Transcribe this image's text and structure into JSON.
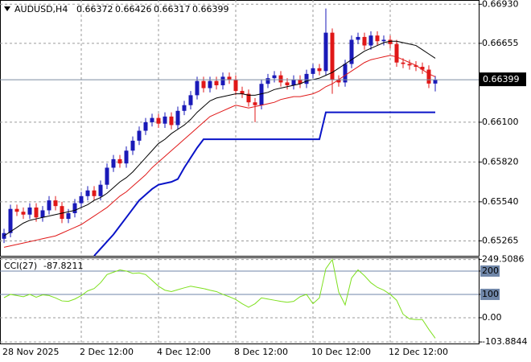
{
  "chart_data": [
    {
      "type": "candlestick",
      "title": "AUDUSD,H4",
      "categories": [
        "28 Nov 2025",
        null,
        null,
        null,
        null,
        null,
        null,
        null,
        null,
        null,
        null,
        null,
        "2 Dec 12:00",
        null,
        null,
        null,
        null,
        null,
        null,
        null,
        null,
        null,
        null,
        null,
        "4 Dec 12:00",
        null,
        null,
        null,
        null,
        null,
        null,
        null,
        null,
        null,
        null,
        null,
        "8 Dec 12:00",
        null,
        null,
        null,
        null,
        null,
        null,
        null,
        null,
        null,
        null,
        null,
        "10 Dec 12:00",
        null,
        null,
        null,
        null,
        null,
        null,
        null,
        null,
        null,
        null,
        null,
        "12 Dec 12:00",
        null,
        null,
        null,
        null,
        null,
        null,
        null
      ],
      "open": [
        0.6528,
        0.6532,
        0.6549,
        0.6547,
        0.6545,
        0.655,
        0.6543,
        0.6548,
        0.6555,
        0.6551,
        0.6542,
        0.6546,
        0.6553,
        0.6558,
        0.6562,
        0.6558,
        0.6566,
        0.6578,
        0.6584,
        0.6581,
        0.659,
        0.6597,
        0.6604,
        0.661,
        0.6613,
        0.6609,
        0.6614,
        0.6608,
        0.6618,
        0.6622,
        0.6629,
        0.6639,
        0.6634,
        0.6639,
        0.6636,
        0.6642,
        0.664,
        0.6632,
        0.663,
        0.6624,
        0.6622,
        0.6637,
        0.6641,
        0.6643,
        0.6638,
        0.6636,
        0.664,
        0.6637,
        0.6644,
        0.6648,
        0.6646,
        0.6673,
        0.664,
        0.6638,
        0.6651,
        0.6668,
        0.667,
        0.6664,
        0.6671,
        0.6667,
        0.6668,
        0.6665,
        0.6652,
        0.6651,
        0.665,
        0.6649,
        0.6647,
        0.66372
      ],
      "high": [
        0.6535,
        0.6552,
        0.6552,
        0.655,
        0.6553,
        0.6553,
        0.6551,
        0.6558,
        0.6558,
        0.6554,
        0.6549,
        0.6556,
        0.6561,
        0.6565,
        0.6565,
        0.6569,
        0.6581,
        0.6587,
        0.6587,
        0.6593,
        0.66,
        0.6607,
        0.6613,
        0.6616,
        0.6616,
        0.6617,
        0.6617,
        0.6621,
        0.6625,
        0.6632,
        0.6642,
        0.6642,
        0.6642,
        0.6642,
        0.6645,
        0.6645,
        0.6643,
        0.6635,
        0.6633,
        0.6627,
        0.664,
        0.6644,
        0.6646,
        0.6646,
        0.6641,
        0.6643,
        0.6643,
        0.6647,
        0.6651,
        0.6651,
        0.669,
        0.6676,
        0.6643,
        0.6654,
        0.6671,
        0.6673,
        0.6673,
        0.6674,
        0.6674,
        0.6671,
        0.6671,
        0.6668,
        0.6655,
        0.6654,
        0.6653,
        0.6652,
        0.665,
        0.66426
      ],
      "low": [
        0.6525,
        0.6529,
        0.6544,
        0.6542,
        0.6542,
        0.654,
        0.654,
        0.6545,
        0.6548,
        0.6539,
        0.6539,
        0.6543,
        0.655,
        0.6555,
        0.6555,
        0.6555,
        0.6563,
        0.6575,
        0.6578,
        0.6578,
        0.6587,
        0.6594,
        0.6601,
        0.6607,
        0.6606,
        0.6606,
        0.6605,
        0.6605,
        0.6615,
        0.6619,
        0.6626,
        0.6631,
        0.6631,
        0.6633,
        0.6633,
        0.6637,
        0.6629,
        0.6627,
        0.6621,
        0.661,
        0.6619,
        0.6634,
        0.6638,
        0.6635,
        0.6633,
        0.6633,
        0.6634,
        0.6634,
        0.6641,
        0.6643,
        0.6643,
        0.663,
        0.6635,
        0.6635,
        0.6648,
        0.6665,
        0.6661,
        0.6661,
        0.6664,
        0.6664,
        0.6662,
        0.6649,
        0.6648,
        0.6647,
        0.6646,
        0.6644,
        0.6634,
        0.66317
      ],
      "close": [
        0.6532,
        0.6549,
        0.6547,
        0.6545,
        0.655,
        0.6543,
        0.6548,
        0.6555,
        0.6551,
        0.6542,
        0.6546,
        0.6553,
        0.6558,
        0.6562,
        0.6558,
        0.6566,
        0.6578,
        0.6584,
        0.6581,
        0.659,
        0.6597,
        0.6604,
        0.661,
        0.6613,
        0.6609,
        0.6614,
        0.6608,
        0.6618,
        0.6622,
        0.6629,
        0.6639,
        0.6634,
        0.6639,
        0.6636,
        0.6642,
        0.664,
        0.6632,
        0.663,
        0.6624,
        0.6622,
        0.6637,
        0.6641,
        0.6643,
        0.6638,
        0.6636,
        0.664,
        0.6637,
        0.6644,
        0.6648,
        0.6646,
        0.6673,
        0.664,
        0.6638,
        0.6651,
        0.6668,
        0.667,
        0.6664,
        0.6671,
        0.6667,
        0.6668,
        0.6665,
        0.6652,
        0.6651,
        0.665,
        0.6649,
        0.6647,
        0.66372,
        0.66399
      ],
      "up_color": "#1a1ab8",
      "down_color": "#e01818",
      "series": [
        {
          "color": "#000000",
          "values": [
            0.653,
            0.6533,
            0.6536,
            0.6539,
            0.6541,
            0.6542,
            0.6543,
            0.6544,
            0.6545,
            0.6546,
            0.6547,
            0.6548,
            0.655,
            0.6552,
            0.6555,
            0.6557,
            0.656,
            0.6564,
            0.6568,
            0.6571,
            0.6575,
            0.658,
            0.6585,
            0.659,
            0.6595,
            0.6598,
            0.6602,
            0.6605,
            0.6608,
            0.6612,
            0.6617,
            0.6621,
            0.6625,
            0.6627,
            0.6628,
            0.6629,
            0.663,
            0.663,
            0.6629,
            0.6629,
            0.663,
            0.6631,
            0.6633,
            0.6634,
            0.6635,
            0.6636,
            0.6637,
            0.6639,
            0.664,
            0.6641,
            0.6643,
            0.6645,
            0.6648,
            0.6651,
            0.6654,
            0.6657,
            0.666,
            0.6662,
            0.6664,
            0.6666,
            0.6667,
            0.6667,
            0.6666,
            0.6665,
            0.6664,
            0.6661,
            0.6658,
            0.6655
          ]
        },
        {
          "color": "#e01818",
          "values": [
            0.6522,
            0.6523,
            0.6524,
            0.6525,
            0.6526,
            0.6527,
            0.6528,
            0.6529,
            0.653,
            0.6532,
            0.6534,
            0.6536,
            0.6538,
            0.6541,
            0.6544,
            0.6547,
            0.655,
            0.6554,
            0.6558,
            0.6561,
            0.6565,
            0.6569,
            0.6573,
            0.6578,
            0.6582,
            0.6586,
            0.659,
            0.6594,
            0.6598,
            0.6602,
            0.6606,
            0.661,
            0.6614,
            0.6616,
            0.6618,
            0.662,
            0.6622,
            0.6621,
            0.662,
            0.6621,
            0.6622,
            0.6623,
            0.6624,
            0.6626,
            0.6627,
            0.6628,
            0.6628,
            0.6629,
            0.663,
            0.6632,
            0.6635,
            0.6637,
            0.664,
            0.6643,
            0.6646,
            0.6649,
            0.6652,
            0.6654,
            0.6655,
            0.6656,
            0.6657,
            0.6656,
            0.6654,
            0.6652,
            0.665,
            0.6647,
            0.6644,
            0.6642
          ]
        },
        {
          "color": "#0a14c8",
          "width": 2,
          "values": [
            null,
            null,
            null,
            null,
            null,
            null,
            null,
            null,
            null,
            null,
            null,
            null,
            null,
            null,
            0.6516,
            0.6521,
            0.6526,
            0.6531,
            0.6537,
            0.6543,
            0.6549,
            0.6555,
            0.6559,
            0.6563,
            0.6566,
            0.6567,
            0.6568,
            0.657,
            0.6578,
            0.6585,
            0.6592,
            0.6598,
            0.6598,
            0.6598,
            0.6598,
            0.6598,
            0.6598,
            0.6598,
            0.6598,
            0.6598,
            0.6598,
            0.6598,
            0.6598,
            0.6598,
            0.6598,
            0.6598,
            0.6598,
            0.6598,
            0.6598,
            0.6598,
            0.6617,
            0.6617,
            0.6617,
            0.6617,
            0.6617,
            0.6617,
            0.6617,
            0.6617,
            0.6617,
            0.6617,
            0.6617,
            0.6617,
            0.6617,
            0.6617,
            0.6617,
            0.6617,
            0.6617,
            0.6617
          ]
        }
      ],
      "ylim": [
        0.6516,
        0.6696
      ],
      "yticks": [
        {
          "value": 0.6693,
          "label": "0.66930"
        },
        0.66655,
        {
          "value": 0.661,
          "label": "0.66100"
        },
        {
          "value": 0.6582,
          "label": "0.65820"
        },
        {
          "value": 0.6554,
          "label": "0.65540"
        },
        0.65265
      ],
      "grid": true
    },
    {
      "type": "line",
      "title": "CCI(27)",
      "series": [
        {
          "color": "#7ee01e",
          "values": [
            86,
            100,
            95,
            90,
            100,
            88,
            98,
            95,
            85,
            72,
            70,
            80,
            95,
            115,
            125,
            150,
            185,
            195,
            205,
            200,
            190,
            192,
            185,
            160,
            135,
            118,
            112,
            120,
            128,
            135,
            130,
            125,
            118,
            112,
            100,
            90,
            78,
            60,
            45,
            60,
            85,
            80,
            75,
            70,
            66,
            70,
            90,
            100,
            60,
            85,
            210,
            249.5086,
            110,
            55,
            170,
            205,
            180,
            150,
            130,
            118,
            100,
            75,
            15,
            -5,
            -8,
            -8,
            -50,
            -87.8211
          ]
        }
      ],
      "ylim": [
        -114,
        255
      ],
      "yticks": [
        249.5086,
        200,
        100,
        {
          "value": 0,
          "label": "0.00"
        },
        -103.8844
      ],
      "levels": [
        200,
        100
      ],
      "grid": true
    }
  ]
}
